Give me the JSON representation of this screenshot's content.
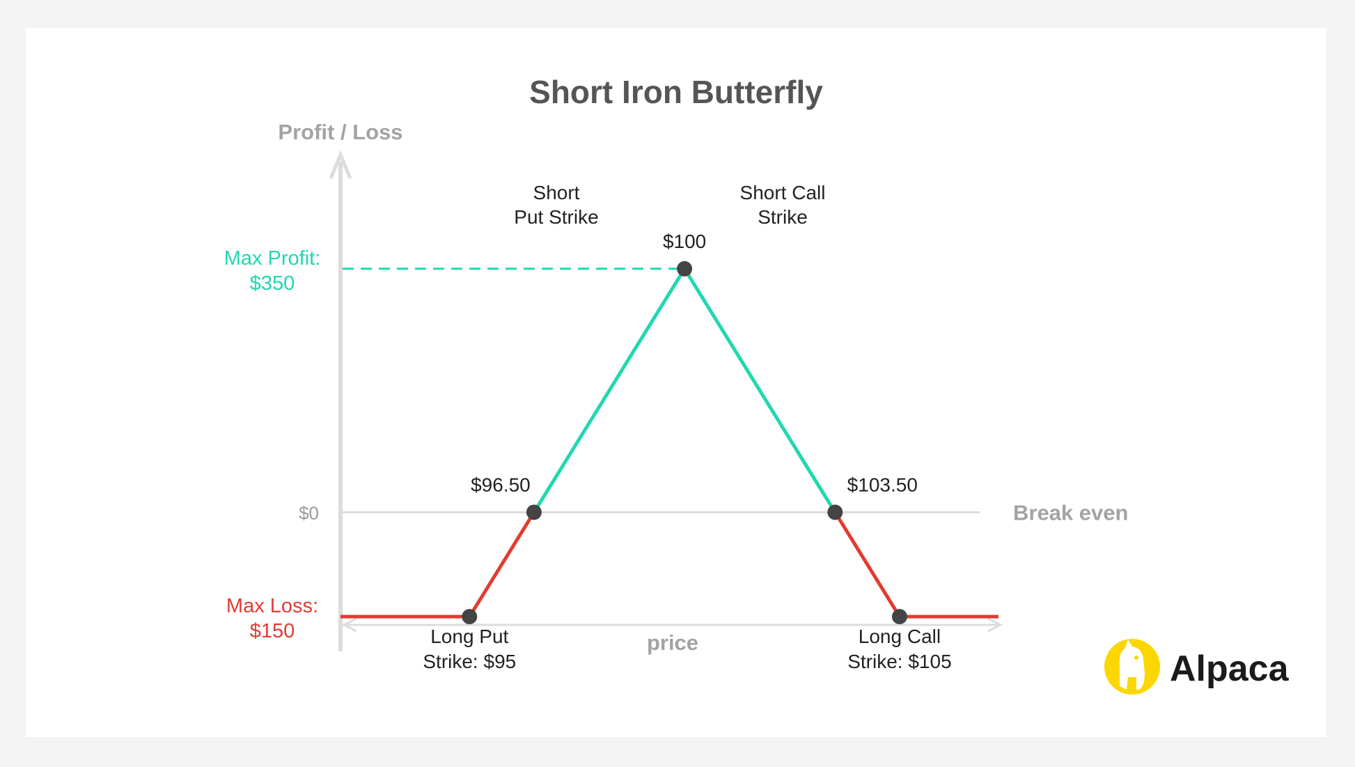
{
  "chart_data": {
    "type": "line",
    "title": "Short Iron Butterfly",
    "ylabel": "Profit / Loss",
    "xlabel": "price",
    "x": [
      92,
      95,
      96.5,
      100,
      103.5,
      105,
      107.3
    ],
    "y": [
      -150,
      -150,
      0,
      350,
      0,
      -150,
      -150
    ],
    "xlim": [
      92,
      107.3
    ],
    "ylim": [
      -250,
      500
    ],
    "zero_line_label": "$0",
    "breakeven_label": "Break even",
    "max_profit": {
      "label_line1": "Max Profit:",
      "label_line2": "$350",
      "value": 350
    },
    "max_loss": {
      "label_line1": "Max Loss:",
      "label_line2": "$150",
      "value": -150
    },
    "points": [
      {
        "x": 95,
        "y": -150,
        "label_line1": "Long Put",
        "label_line2": "Strike: $95"
      },
      {
        "x": 96.5,
        "y": 0,
        "label_line1": "$96.50",
        "label_line2": ""
      },
      {
        "x": 100,
        "y": 350,
        "label_line1": "$100",
        "label_line2": ""
      },
      {
        "x": 103.5,
        "y": 0,
        "label_line1": "$103.50",
        "label_line2": ""
      },
      {
        "x": 105,
        "y": -150,
        "label_line1": "Long Call",
        "label_line2": "Strike: $105"
      }
    ],
    "strike_labels": {
      "short_put_line1": "Short",
      "short_put_line2": "Put Strike",
      "short_call_line1": "Short Call",
      "short_call_line2": "Strike"
    },
    "colors": {
      "profit": "#1fd8b0",
      "loss": "#e23b30",
      "axis": "#dcdcdc",
      "point": "#444444"
    }
  },
  "brand": {
    "name": "Alpaca",
    "icon": "alpaca-logo-icon",
    "color": "#fcd600"
  }
}
